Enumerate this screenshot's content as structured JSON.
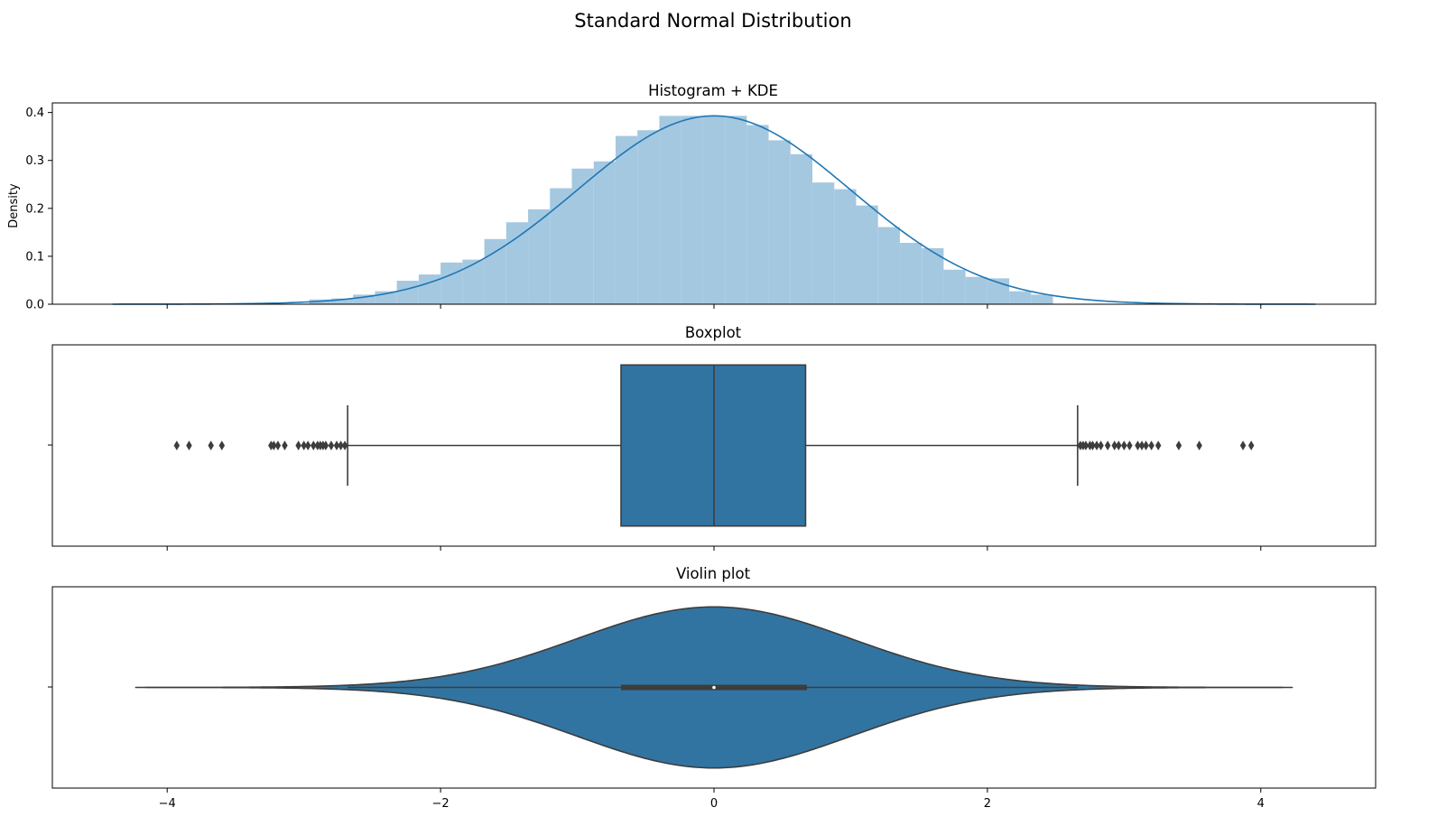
{
  "figure": {
    "title": "Standard Normal Distribution"
  },
  "colors": {
    "kde_line": "#1f77b4",
    "hist_fill": "#a5c8e1",
    "box_fill": "#3274a1",
    "edge": "#3d3d3d"
  },
  "chart_data": [
    {
      "type": "bar",
      "subtype": "histogram+kde",
      "title": "Histogram + KDE",
      "ylabel": "Density",
      "xlim": [
        -4.84,
        4.84
      ],
      "ylim": [
        0,
        0.42
      ],
      "x_ticks": [
        -4,
        -2,
        0,
        2,
        4
      ],
      "x_tick_labels_visible": false,
      "y_ticks": [
        0.0,
        0.1,
        0.2,
        0.3,
        0.4
      ],
      "y_tick_labels": [
        "0.0",
        "0.1",
        "0.2",
        "0.3",
        "0.4"
      ],
      "bin_edges": [
        -2.96,
        -2.8,
        -2.64,
        -2.48,
        -2.32,
        -2.16,
        -2.0,
        -1.84,
        -1.68,
        -1.52,
        -1.36,
        -1.2,
        -1.04,
        -0.88,
        -0.72,
        -0.56,
        -0.4,
        -0.24,
        -0.08,
        0.08,
        0.24,
        0.4,
        0.56,
        0.72,
        0.88,
        1.04,
        1.2,
        1.36,
        1.52,
        1.68,
        1.84,
        2.0,
        2.16,
        2.32,
        2.48
      ],
      "bin_heights": [
        0.01,
        0.012,
        0.02,
        0.027,
        0.049,
        0.062,
        0.087,
        0.093,
        0.136,
        0.171,
        0.198,
        0.242,
        0.283,
        0.298,
        0.351,
        0.363,
        0.393,
        0.393,
        0.393,
        0.393,
        0.374,
        0.342,
        0.313,
        0.254,
        0.24,
        0.206,
        0.161,
        0.128,
        0.117,
        0.072,
        0.057,
        0.054,
        0.027,
        0.02
      ],
      "kde": {
        "x_min": -4.4,
        "x_max": 4.4,
        "mean": 0.0,
        "sd": 1.0,
        "peak": 0.393
      }
    },
    {
      "type": "box",
      "title": "Boxplot",
      "xlim": [
        -4.84,
        4.84
      ],
      "x_ticks": [
        -4,
        -2,
        0,
        2,
        4
      ],
      "x_tick_labels_visible": false,
      "q1": -0.68,
      "median": 0.0,
      "q3": 0.67,
      "whisker_low": -2.68,
      "whisker_high": 2.66,
      "outliers": [
        -3.93,
        -3.84,
        -3.68,
        -3.6,
        -3.24,
        -3.22,
        -3.19,
        -3.14,
        -3.04,
        -3.0,
        -2.97,
        -2.93,
        -2.9,
        -2.88,
        -2.86,
        -2.84,
        -2.8,
        -2.76,
        -2.73,
        -2.7,
        2.68,
        2.7,
        2.72,
        2.75,
        2.77,
        2.8,
        2.83,
        2.88,
        2.93,
        2.96,
        3.0,
        3.04,
        3.1,
        3.13,
        3.16,
        3.2,
        3.25,
        3.4,
        3.55,
        3.87,
        3.93
      ]
    },
    {
      "type": "violin",
      "title": "Violin plot",
      "xlim": [
        -4.84,
        4.84
      ],
      "x_ticks": [
        -4,
        -2,
        0,
        2,
        4
      ],
      "x_tick_labels": [
        "−4",
        "−2",
        "0",
        "2",
        "4"
      ],
      "extent": [
        -4.23,
        4.23
      ],
      "density": {
        "mean": 0.0,
        "sd": 1.0,
        "peak": 0.4
      },
      "q1": -0.68,
      "median": 0.0,
      "q3": 0.68,
      "whisker_low": -2.68,
      "whisker_high": 2.66
    }
  ]
}
